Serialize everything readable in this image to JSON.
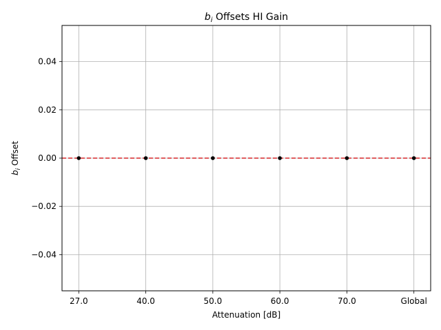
{
  "chart_data": {
    "type": "scatter",
    "title_var": "b",
    "title_sub": "i",
    "title_rest": " Offsets HI Gain",
    "xlabel": "Attenuation [dB]",
    "ylabel_var": "b",
    "ylabel_sub": "i",
    "ylabel_rest": " Offset",
    "categories": [
      "27.0",
      "40.0",
      "50.0",
      "60.0",
      "70.0",
      "Global"
    ],
    "values": [
      0,
      0,
      0,
      0,
      0,
      0
    ],
    "ylim": [
      -0.055,
      0.055
    ],
    "yticks": [
      -0.04,
      -0.02,
      0.0,
      0.02,
      0.04
    ],
    "ytick_labels": [
      "−0.04",
      "−0.02",
      "0.00",
      "0.02",
      "0.04"
    ],
    "reference_line": {
      "y": 0,
      "style": "dashed",
      "color": "#d62728"
    },
    "marker_color": "#000000",
    "grid": true,
    "grid_color": "#b0b0b0"
  }
}
